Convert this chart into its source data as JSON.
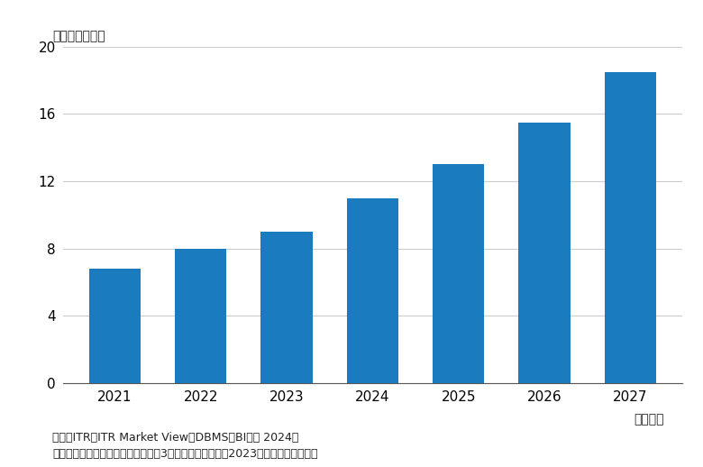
{
  "categories": [
    "2021",
    "2022",
    "2023",
    "2024",
    "2025",
    "2026",
    "2027"
  ],
  "values": [
    6.8,
    8.0,
    9.0,
    11.0,
    13.0,
    15.5,
    18.5
  ],
  "bar_color": "#1a7bbf",
  "ylim": [
    0,
    20
  ],
  "yticks": [
    0,
    4,
    8,
    12,
    16,
    20
  ],
  "unit_label": "（単位：億円）",
  "xlabel": "（年度）",
  "footnote_line1": "出典：ITR『ITR Market View：DBMS／BI市場 2024』",
  "footnote_line2": "＊ベンダーの売上金額を対象とし、3月期ベースで換算。2023年度以降は予測値。",
  "background_color": "#ffffff",
  "grid_color": "#cccccc",
  "bar_width": 0.6
}
